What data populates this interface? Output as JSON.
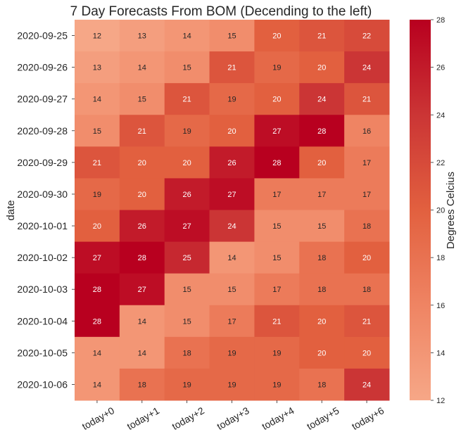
{
  "chart_data": {
    "type": "heatmap",
    "title": "7 Day Forecasts From BOM (Decending to the left)",
    "xlabel": "",
    "ylabel": "date",
    "x_categories": [
      "today+0",
      "today+1",
      "today+2",
      "today+3",
      "today+4",
      "today+5",
      "today+6"
    ],
    "y_categories": [
      "2020-09-25",
      "2020-09-26",
      "2020-09-27",
      "2020-09-28",
      "2020-09-29",
      "2020-09-30",
      "2020-10-01",
      "2020-10-02",
      "2020-10-03",
      "2020-10-04",
      "2020-10-05",
      "2020-10-06"
    ],
    "values": [
      [
        12,
        13,
        14,
        15,
        20,
        21,
        22
      ],
      [
        13,
        14,
        15,
        21,
        19,
        20,
        24
      ],
      [
        14,
        15,
        21,
        19,
        20,
        24,
        21
      ],
      [
        15,
        21,
        19,
        20,
        27,
        28,
        16
      ],
      [
        21,
        20,
        20,
        26,
        28,
        20,
        17
      ],
      [
        19,
        20,
        26,
        27,
        17,
        17,
        17
      ],
      [
        20,
        26,
        27,
        24,
        15,
        15,
        18
      ],
      [
        27,
        28,
        25,
        14,
        15,
        18,
        20
      ],
      [
        28,
        27,
        15,
        15,
        17,
        18,
        18
      ],
      [
        28,
        14,
        15,
        17,
        21,
        20,
        21
      ],
      [
        14,
        14,
        18,
        19,
        19,
        20,
        20
      ],
      [
        14,
        18,
        19,
        19,
        19,
        18,
        24
      ]
    ],
    "colorbar": {
      "label": "Degrees Celcius",
      "min": 12,
      "max": 28,
      "ticks": [
        12,
        14,
        16,
        18,
        20,
        22,
        24,
        26,
        28
      ],
      "color_low": "#f6a787",
      "color_high": "#b8001f"
    },
    "grid": false,
    "annotations": true
  }
}
